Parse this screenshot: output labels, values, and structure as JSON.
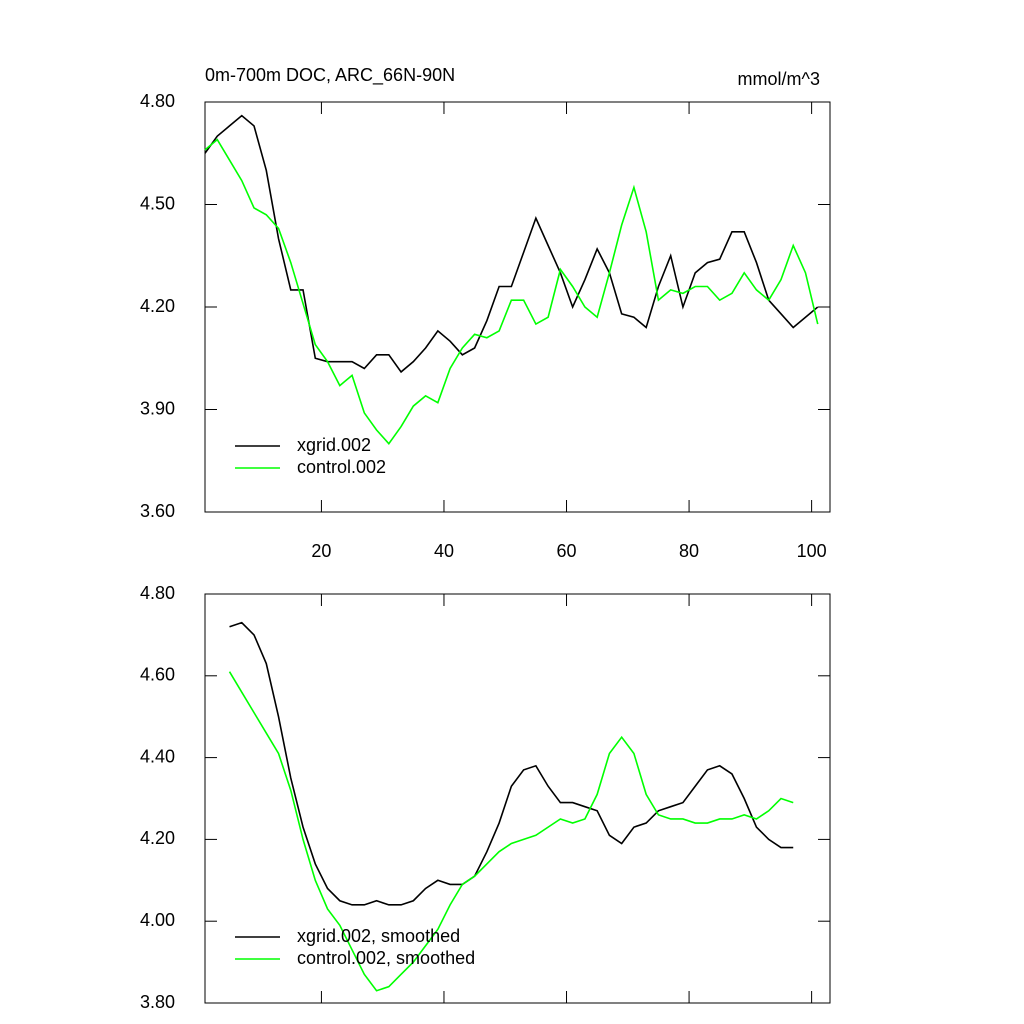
{
  "chart_data": [
    {
      "type": "line",
      "title": "0m-700m DOC, ARC_66N-90N",
      "units": "mmol/m^3",
      "x": [
        1,
        3,
        5,
        7,
        9,
        11,
        13,
        15,
        17,
        19,
        21,
        23,
        25,
        27,
        29,
        31,
        33,
        35,
        37,
        39,
        41,
        43,
        45,
        47,
        49,
        51,
        53,
        55,
        57,
        59,
        61,
        63,
        65,
        67,
        69,
        71,
        73,
        75,
        77,
        79,
        81,
        83,
        85,
        87,
        89,
        91,
        93,
        95,
        97,
        99,
        101
      ],
      "series": [
        {
          "name": "xgrid.002",
          "color": "#000000",
          "values": [
            4.65,
            4.7,
            4.73,
            4.76,
            4.73,
            4.6,
            4.4,
            4.25,
            4.25,
            4.05,
            4.04,
            4.04,
            4.04,
            4.02,
            4.06,
            4.06,
            4.01,
            4.04,
            4.08,
            4.13,
            4.1,
            4.06,
            4.08,
            4.16,
            4.26,
            4.26,
            4.36,
            4.46,
            4.38,
            4.3,
            4.2,
            4.28,
            4.37,
            4.3,
            4.18,
            4.17,
            4.14,
            4.26,
            4.35,
            4.2,
            4.3,
            4.33,
            4.34,
            4.42,
            4.42,
            4.33,
            4.22,
            4.18,
            4.14,
            4.17,
            4.2
          ]
        },
        {
          "name": "control.002",
          "color": "#00ff00",
          "values": [
            4.66,
            4.69,
            4.63,
            4.57,
            4.49,
            4.47,
            4.43,
            4.33,
            4.21,
            4.09,
            4.04,
            3.97,
            4.0,
            3.89,
            3.84,
            3.8,
            3.85,
            3.91,
            3.94,
            3.92,
            4.02,
            4.08,
            4.12,
            4.11,
            4.13,
            4.22,
            4.22,
            4.15,
            4.17,
            4.31,
            4.26,
            4.2,
            4.17,
            4.3,
            4.44,
            4.55,
            4.42,
            4.22,
            4.25,
            4.24,
            4.26,
            4.26,
            4.22,
            4.24,
            4.3,
            4.25,
            4.22,
            4.28,
            4.38,
            4.3,
            4.15
          ]
        }
      ],
      "xlim": [
        1,
        103
      ],
      "ylim": [
        3.6,
        4.8
      ],
      "xticks": [
        20,
        40,
        60,
        80,
        100
      ],
      "yticks": [
        {
          "value": 3.6,
          "label": "3.60"
        },
        {
          "value": 3.9,
          "label": "3.90"
        },
        {
          "value": 4.2,
          "label": "4.20"
        },
        {
          "value": 4.5,
          "label": "4.50"
        },
        {
          "value": 4.8,
          "label": "4.80"
        }
      ],
      "legend": "lower left"
    },
    {
      "type": "line",
      "x": [
        5,
        7,
        9,
        11,
        13,
        15,
        17,
        19,
        21,
        23,
        25,
        27,
        29,
        31,
        33,
        35,
        37,
        39,
        41,
        43,
        45,
        47,
        49,
        51,
        53,
        55,
        57,
        59,
        61,
        63,
        65,
        67,
        69,
        71,
        73,
        75,
        77,
        79,
        81,
        83,
        85,
        87,
        89,
        91,
        93,
        95,
        97
      ],
      "series": [
        {
          "name": "xgrid.002, smoothed",
          "color": "#000000",
          "values": [
            4.72,
            4.73,
            4.7,
            4.63,
            4.5,
            4.35,
            4.23,
            4.14,
            4.08,
            4.05,
            4.04,
            4.04,
            4.05,
            4.04,
            4.04,
            4.05,
            4.08,
            4.1,
            4.09,
            4.09,
            4.11,
            4.17,
            4.24,
            4.33,
            4.37,
            4.38,
            4.33,
            4.29,
            4.29,
            4.28,
            4.27,
            4.21,
            4.19,
            4.23,
            4.24,
            4.27,
            4.28,
            4.29,
            4.33,
            4.37,
            4.38,
            4.36,
            4.3,
            4.23,
            4.2,
            4.18,
            4.18
          ]
        },
        {
          "name": "control.002, smoothed",
          "color": "#00ff00",
          "values": [
            4.61,
            4.56,
            4.51,
            4.46,
            4.41,
            4.32,
            4.2,
            4.1,
            4.03,
            3.99,
            3.93,
            3.87,
            3.83,
            3.84,
            3.87,
            3.9,
            3.94,
            3.98,
            4.04,
            4.09,
            4.11,
            4.14,
            4.17,
            4.19,
            4.2,
            4.21,
            4.23,
            4.25,
            4.24,
            4.25,
            4.31,
            4.41,
            4.45,
            4.41,
            4.31,
            4.26,
            4.25,
            4.25,
            4.24,
            4.24,
            4.25,
            4.25,
            4.26,
            4.25,
            4.27,
            4.3,
            4.29
          ]
        }
      ],
      "xlim": [
        1,
        103
      ],
      "ylim": [
        3.8,
        4.8
      ],
      "xticks": [
        20,
        40,
        60,
        80,
        100
      ],
      "yticks": [
        {
          "value": 3.8,
          "label": "3.80"
        },
        {
          "value": 4.0,
          "label": "4.00"
        },
        {
          "value": 4.2,
          "label": "4.20"
        },
        {
          "value": 4.4,
          "label": "4.40"
        },
        {
          "value": 4.6,
          "label": "4.60"
        },
        {
          "value": 4.8,
          "label": "4.80"
        }
      ],
      "legend": "lower left"
    }
  ]
}
